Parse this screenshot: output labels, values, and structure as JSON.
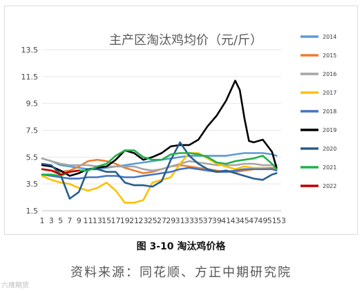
{
  "figure": {
    "caption": "图 3-10 淘汰鸡价格",
    "source": "资料来源：同花顺、方正中期研究院",
    "watermark": "六维期货"
  },
  "chart_data": {
    "type": "line",
    "title": "主产区淘汰鸡均价（元/斤）",
    "xlabel": "",
    "ylabel": "",
    "ylim": [
      1.5,
      13.5
    ],
    "yticks": [
      1.5,
      3.5,
      5.5,
      7.5,
      9.5,
      11.5,
      13.5
    ],
    "x": [
      1,
      3,
      5,
      7,
      9,
      11,
      13,
      15,
      17,
      19,
      21,
      23,
      25,
      27,
      29,
      31,
      33,
      35,
      37,
      39,
      41,
      43,
      45,
      47,
      49,
      51,
      53
    ],
    "xtick_labels": [
      "1",
      "3",
      "5",
      "7",
      "9",
      "11",
      "13",
      "15",
      "17",
      "19",
      "21",
      "23",
      "25",
      "27",
      "29",
      "31",
      "33",
      "35",
      "37",
      "39",
      "41",
      "43",
      "45",
      "47",
      "49",
      "51",
      "53"
    ],
    "grid": "horizontal",
    "legend": "right",
    "series": [
      {
        "name": "2014",
        "color": "#5b9bd5",
        "x": [
          1,
          3,
          5,
          7,
          9,
          11,
          13,
          15,
          17,
          19,
          21,
          23,
          25,
          27,
          29,
          31,
          33,
          35,
          37,
          39,
          41,
          43,
          45,
          47,
          49,
          51,
          52
        ],
        "values": [
          5.4,
          5.2,
          4.9,
          4.8,
          4.7,
          4.6,
          4.6,
          4.7,
          4.8,
          4.9,
          5.0,
          5.1,
          5.2,
          5.3,
          5.4,
          5.5,
          5.6,
          5.6,
          5.6,
          5.6,
          5.6,
          5.7,
          5.8,
          5.8,
          5.8,
          5.7,
          5.6
        ]
      },
      {
        "name": "2015",
        "color": "#ed7d31",
        "x": [
          1,
          3,
          5,
          7,
          9,
          11,
          13,
          15,
          17,
          19,
          21,
          23,
          25,
          27,
          29,
          31,
          33,
          35,
          37,
          39,
          41,
          43,
          45,
          47,
          49,
          51,
          52
        ],
        "values": [
          4.6,
          4.5,
          4.4,
          4.5,
          4.8,
          5.2,
          5.3,
          5.2,
          5.0,
          4.7,
          4.5,
          4.3,
          4.4,
          4.6,
          4.8,
          4.9,
          4.8,
          4.7,
          4.6,
          4.5,
          4.4,
          4.4,
          4.5,
          4.6,
          4.7,
          4.7,
          4.6
        ]
      },
      {
        "name": "2016",
        "color": "#a5a5a5",
        "x": [
          1,
          3,
          5,
          7,
          9,
          11,
          13,
          15,
          17,
          19,
          21,
          23,
          25,
          27,
          29,
          31,
          33,
          35,
          37,
          39,
          41,
          43,
          45,
          47,
          49,
          51,
          52
        ],
        "values": [
          5.4,
          5.2,
          5.0,
          4.9,
          4.9,
          4.9,
          4.8,
          4.8,
          4.8,
          4.8,
          4.8,
          4.6,
          4.5,
          4.6,
          4.8,
          5.0,
          5.2,
          5.1,
          5.0,
          4.9,
          4.9,
          4.9,
          5.0,
          5.0,
          4.9,
          4.9,
          4.9
        ]
      },
      {
        "name": "2017",
        "color": "#ffc000",
        "x": [
          1,
          3,
          5,
          7,
          9,
          11,
          13,
          15,
          17,
          19,
          21,
          23,
          25,
          27,
          29,
          31,
          33,
          35,
          37,
          39,
          41,
          43,
          45,
          47,
          49,
          51,
          52
        ],
        "values": [
          4.1,
          3.8,
          3.6,
          3.5,
          3.2,
          3.0,
          3.2,
          3.6,
          3.0,
          2.1,
          2.1,
          2.3,
          3.6,
          3.8,
          4.0,
          5.0,
          5.8,
          5.8,
          5.4,
          5.0,
          4.8,
          4.6,
          4.8,
          4.7,
          4.7,
          4.6,
          4.6
        ]
      },
      {
        "name": "2018",
        "color": "#4472c4",
        "x": [
          1,
          3,
          5,
          7,
          9,
          11,
          13,
          15,
          17,
          19,
          21,
          23,
          25,
          27,
          29,
          31,
          33,
          35,
          37,
          39,
          41,
          43,
          45,
          47,
          49,
          51,
          52
        ],
        "values": [
          4.2,
          4.1,
          4.0,
          3.9,
          3.9,
          4.0,
          4.0,
          4.1,
          4.1,
          4.0,
          4.0,
          4.1,
          4.2,
          4.3,
          4.4,
          4.6,
          4.7,
          4.6,
          4.5,
          4.4,
          4.4,
          4.5,
          4.6,
          4.6,
          4.6,
          4.6,
          4.5
        ]
      },
      {
        "name": "2019",
        "color": "#000000",
        "x": [
          1,
          3,
          5,
          7,
          9,
          11,
          13,
          15,
          17,
          19,
          21,
          23,
          25,
          27,
          29,
          31,
          33,
          35,
          37,
          39,
          41,
          43,
          44,
          45,
          46,
          47,
          49,
          51,
          52
        ],
        "values": [
          4.9,
          4.8,
          4.5,
          4.1,
          4.3,
          4.6,
          4.7,
          4.8,
          5.3,
          6.0,
          5.8,
          5.3,
          5.5,
          5.8,
          6.3,
          6.4,
          6.4,
          6.8,
          7.8,
          8.6,
          9.7,
          11.2,
          10.5,
          8.4,
          6.7,
          6.6,
          6.8,
          5.9,
          4.7
        ]
      },
      {
        "name": "2020",
        "color": "#255e91",
        "x": [
          1,
          3,
          5,
          7,
          9,
          11,
          13,
          15,
          17,
          19,
          21,
          23,
          25,
          27,
          29,
          31,
          33,
          35,
          37,
          39,
          41,
          43,
          45,
          47,
          49,
          51,
          52
        ],
        "values": [
          5.0,
          4.9,
          4.2,
          2.4,
          2.9,
          4.6,
          4.6,
          4.4,
          4.4,
          3.6,
          3.4,
          3.4,
          3.3,
          3.7,
          5.3,
          6.6,
          5.6,
          5.0,
          4.6,
          4.4,
          4.5,
          4.3,
          4.1,
          3.9,
          3.8,
          4.2,
          4.3
        ]
      },
      {
        "name": "2021",
        "color": "#21b04b",
        "x": [
          1,
          3,
          5,
          7,
          9,
          11,
          13,
          15,
          17,
          19,
          21,
          23,
          25,
          27,
          29,
          31,
          33,
          35,
          37,
          39,
          41,
          43,
          45,
          47,
          49,
          51,
          52
        ],
        "values": [
          4.2,
          4.2,
          4.1,
          4.4,
          4.5,
          4.5,
          4.8,
          5.0,
          5.6,
          6.0,
          6.0,
          5.5,
          5.3,
          5.3,
          5.7,
          5.8,
          5.8,
          5.7,
          5.5,
          5.1,
          5.0,
          5.2,
          5.3,
          5.4,
          5.6,
          5.0,
          4.6
        ]
      },
      {
        "name": "2022",
        "color": "#c00000",
        "x": [
          1,
          3,
          5,
          7,
          9
        ],
        "values": [
          4.6,
          4.5,
          4.2,
          4.4,
          4.5
        ]
      }
    ]
  }
}
